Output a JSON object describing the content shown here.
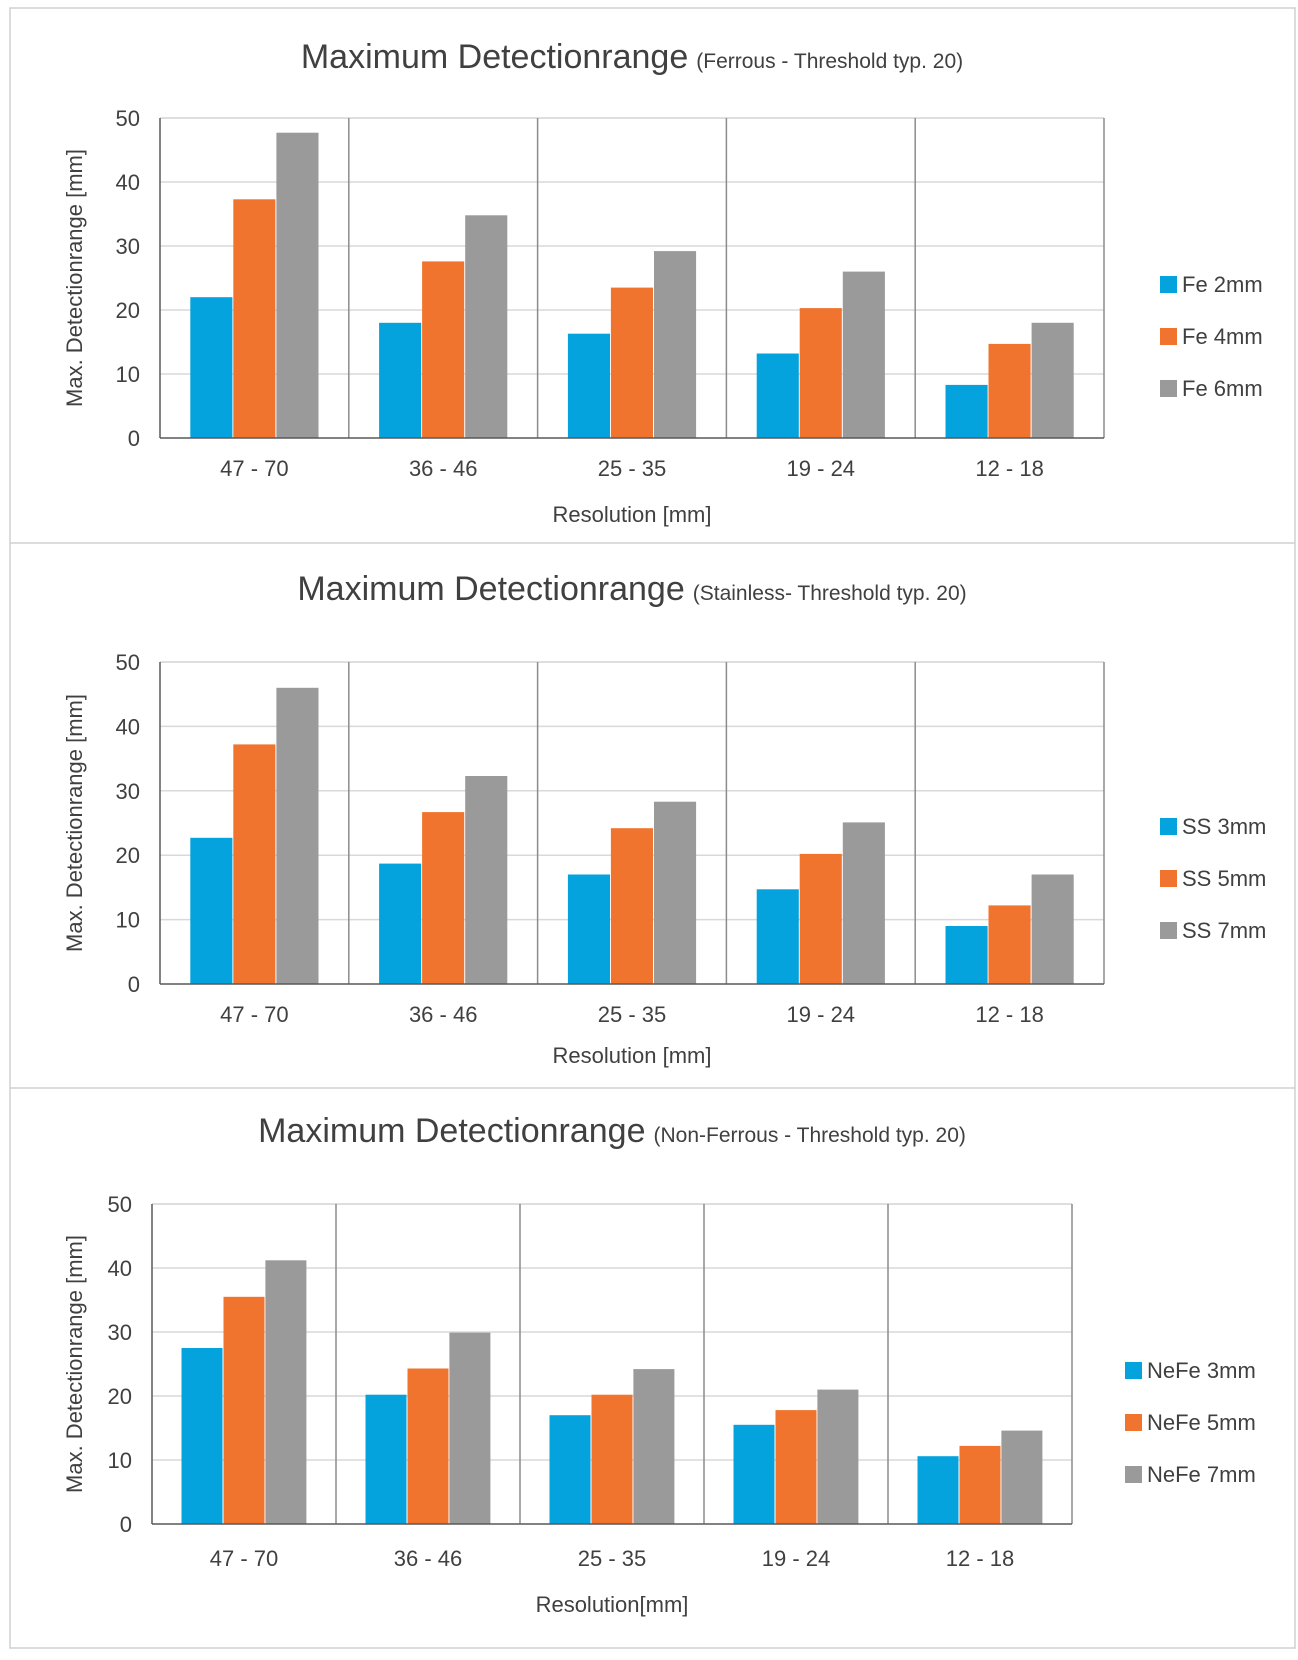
{
  "colors": {
    "series": [
      "#05A3DD",
      "#F0742E",
      "#9A9A9A"
    ],
    "grid": "#d9d9d9",
    "divider": "#8c8c8c",
    "axis": "#595959",
    "text": "#404040",
    "border": "#d0d0d0"
  },
  "chart_data": [
    {
      "type": "bar",
      "title": "Maximum Detectionrange",
      "subtitle": "(Ferrous - Threshold typ. 20)",
      "xlabel": "Resolution [mm]",
      "ylabel": "Max. Detectionrange [mm]",
      "ylim": [
        0,
        50
      ],
      "yticks": [
        0,
        10,
        20,
        30,
        40,
        50
      ],
      "grid": true,
      "legend_position": "right",
      "categories": [
        "47 - 70",
        "36 - 46",
        "25 - 35",
        "19 - 24",
        "12 - 18"
      ],
      "series": [
        {
          "name": "Fe 2mm",
          "values": [
            22,
            18,
            16.3,
            13.2,
            8.3
          ]
        },
        {
          "name": "Fe 4mm",
          "values": [
            37.3,
            27.6,
            23.5,
            20.3,
            14.7
          ]
        },
        {
          "name": "Fe 6mm",
          "values": [
            47.7,
            34.8,
            29.2,
            26,
            18
          ]
        }
      ]
    },
    {
      "type": "bar",
      "title": "Maximum Detectionrange",
      "subtitle": "(Stainless- Threshold typ. 20)",
      "xlabel": "Resolution [mm]",
      "ylabel": "Max. Detectionrange [mm]",
      "ylim": [
        0,
        50
      ],
      "yticks": [
        0,
        10,
        20,
        30,
        40,
        50
      ],
      "grid": true,
      "legend_position": "right",
      "categories": [
        "47 - 70",
        "36 - 46",
        "25 - 35",
        "19 - 24",
        "12 - 18"
      ],
      "series": [
        {
          "name": "SS 3mm",
          "values": [
            22.7,
            18.7,
            17,
            14.7,
            9
          ]
        },
        {
          "name": "SS 5mm",
          "values": [
            37.2,
            26.7,
            24.2,
            20.2,
            12.2
          ]
        },
        {
          "name": "SS 7mm",
          "values": [
            46,
            32.3,
            28.3,
            25.1,
            17
          ]
        }
      ]
    },
    {
      "type": "bar",
      "title": "Maximum Detectionrange",
      "subtitle": "(Non-Ferrous - Threshold typ. 20)",
      "xlabel": "Resolution[mm]",
      "ylabel": "Max. Detectionrange [mm]",
      "ylim": [
        0,
        50
      ],
      "yticks": [
        0,
        10,
        20,
        30,
        40,
        50
      ],
      "grid": true,
      "legend_position": "right",
      "categories": [
        "47 - 70",
        "36 - 46",
        "25 - 35",
        "19 - 24",
        "12 - 18"
      ],
      "series": [
        {
          "name": "NeFe 3mm",
          "values": [
            27.5,
            20.2,
            17,
            15.5,
            10.6
          ]
        },
        {
          "name": "NeFe 5mm",
          "values": [
            35.5,
            24.3,
            20.2,
            17.8,
            12.2
          ]
        },
        {
          "name": "NeFe 7mm",
          "values": [
            41.2,
            29.9,
            24.2,
            21,
            14.6
          ]
        }
      ]
    }
  ]
}
